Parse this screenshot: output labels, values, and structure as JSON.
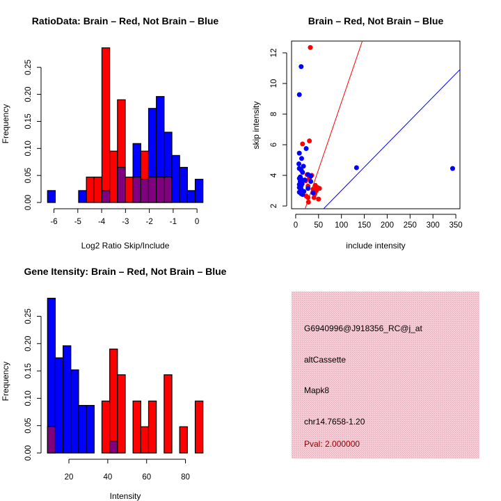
{
  "colors": {
    "red": "#ff0000",
    "blue": "#0000ff",
    "overlap": "#800080",
    "panel": "#f2c4cf",
    "pval": "#8b0000"
  },
  "chart_data": [
    {
      "id": "ratio",
      "type": "bar",
      "title": "RatioData: Brain – Red, Not Brain – Blue",
      "xlabel": "Log2 Ratio Skip/Include",
      "ylabel": "Frequency",
      "bin_start": -6.27,
      "bin_width": 0.326,
      "xlim": [
        -6.27,
        0.25
      ],
      "ylim": [
        0,
        0.29
      ],
      "xticks": [
        "-6",
        "-5",
        "-4",
        "-3",
        "-2",
        "-1",
        "0"
      ],
      "xtick_values": [
        -6,
        -5,
        -4,
        -3,
        -2,
        -1,
        0
      ],
      "yticks": [
        "0.00",
        "0.05",
        "0.10",
        "0.15",
        "0.20",
        "0.25"
      ],
      "ytick_values": [
        0,
        0.05,
        0.1,
        0.15,
        0.2,
        0.25
      ],
      "series": [
        {
          "name": "Brain",
          "color": "red",
          "values": [
            0,
            0,
            0,
            0,
            0,
            0.047,
            0.047,
            0.286,
            0.095,
            0.19,
            0.047,
            0.047,
            0.095,
            0.047,
            0.047,
            0.047,
            0,
            0,
            0,
            0
          ]
        },
        {
          "name": "Not Brain",
          "color": "blue",
          "values": [
            0.022,
            0,
            0,
            0,
            0.022,
            0,
            0,
            0.022,
            0,
            0.065,
            0,
            0.109,
            0.043,
            0.174,
            0.196,
            0.13,
            0.087,
            0.065,
            0.022,
            0.043
          ]
        }
      ]
    },
    {
      "id": "scatter",
      "type": "scatter",
      "title": "Brain – Red, Not Brain – Blue",
      "xlabel": "include intensity",
      "ylabel": "skip intensity",
      "xlim": [
        -9,
        359
      ],
      "ylim": [
        1.82,
        12.77
      ],
      "xticks": [
        "0",
        "50",
        "100",
        "150",
        "200",
        "250",
        "300",
        "350"
      ],
      "xtick_values": [
        0,
        50,
        100,
        150,
        200,
        250,
        300,
        350
      ],
      "yticks": [
        "2",
        "4",
        "6",
        "8",
        "10",
        "12"
      ],
      "ytick_values": [
        2,
        4,
        6,
        8,
        10,
        12
      ],
      "lines": [
        {
          "name": "Brain fit",
          "color": "red",
          "slope": 0.0877,
          "intercept": 0
        },
        {
          "name": "Not Brain fit",
          "color": "blue",
          "slope": 0.0305,
          "intercept": -0.04
        }
      ],
      "series": [
        {
          "name": "Brain",
          "color": "red",
          "points": [
            [
              32,
              12.35
            ],
            [
              15,
              6.05
            ],
            [
              30,
              6.25
            ],
            [
              25,
              4.05
            ],
            [
              35,
              4.0
            ],
            [
              30,
              3.8
            ],
            [
              22,
              3.65
            ],
            [
              27,
              3.3
            ],
            [
              43,
              3.35
            ],
            [
              48,
              3.2
            ],
            [
              38,
              3.1
            ],
            [
              52,
              3.15
            ],
            [
              45,
              3.0
            ],
            [
              42,
              2.8
            ],
            [
              23,
              2.65
            ],
            [
              27,
              2.55
            ],
            [
              40,
              2.55
            ],
            [
              50,
              2.45
            ],
            [
              28,
              2.25
            ],
            [
              47,
              3.1
            ]
          ]
        },
        {
          "name": "Not Brain",
          "color": "blue",
          "points": [
            [
              8,
              9.27
            ],
            [
              12,
              11.1
            ],
            [
              23,
              5.75
            ],
            [
              8,
              5.45
            ],
            [
              13,
              5.1
            ],
            [
              7,
              4.75
            ],
            [
              17,
              4.6
            ],
            [
              8,
              4.45
            ],
            [
              12,
              4.35
            ],
            [
              15,
              4.2
            ],
            [
              27,
              4.05
            ],
            [
              33,
              3.95
            ],
            [
              8,
              3.8
            ],
            [
              12,
              3.75
            ],
            [
              20,
              3.7
            ],
            [
              10,
              3.6
            ],
            [
              33,
              3.6
            ],
            [
              8,
              3.4
            ],
            [
              12,
              3.3
            ],
            [
              8,
              3.2
            ],
            [
              12,
              3.1
            ],
            [
              27,
              3.15
            ],
            [
              18,
              2.95
            ],
            [
              8,
              2.9
            ],
            [
              12,
              2.8
            ],
            [
              15,
              2.75
            ],
            [
              38,
              2.85
            ],
            [
              133,
              4.5
            ],
            [
              343,
              4.45
            ],
            [
              10,
              3.9
            ],
            [
              14,
              3.45
            ]
          ]
        }
      ]
    },
    {
      "id": "intensity",
      "type": "bar",
      "title": "Gene Itensity: Brain – Red, Not Brain – Blue",
      "xlabel": "Intensity",
      "ylabel": "Frequency",
      "bin_start": 9,
      "bin_width": 4,
      "xlim": [
        9,
        89
      ],
      "ylim": [
        0,
        0.29
      ],
      "xticks": [
        "20",
        "40",
        "60",
        "80"
      ],
      "xtick_values": [
        20,
        40,
        60,
        80
      ],
      "yticks": [
        "0.00",
        "0.05",
        "0.10",
        "0.15",
        "0.20",
        "0.25"
      ],
      "ytick_values": [
        0,
        0.05,
        0.1,
        0.15,
        0.2,
        0.25
      ],
      "series": [
        {
          "name": "Brain",
          "color": "red",
          "values": [
            0.048,
            0,
            0,
            0,
            0,
            0,
            0,
            0.095,
            0.19,
            0.143,
            0,
            0.095,
            0.048,
            0.095,
            0,
            0.143,
            0,
            0.048,
            0,
            0.095
          ]
        },
        {
          "name": "Not Brain",
          "color": "blue",
          "values": [
            0.283,
            0.174,
            0.196,
            0.152,
            0.087,
            0.087,
            0,
            0,
            0.022,
            0,
            0,
            0,
            0,
            0,
            0,
            0,
            0,
            0,
            0,
            0
          ]
        }
      ]
    }
  ],
  "info_panel": {
    "probe_id": "G6940996@J918356_RC@j_at",
    "event_type": "altCassette",
    "gene": "Mapk8",
    "location": "chr14.7658-1.20",
    "pval": "Pval: 2.000000"
  }
}
